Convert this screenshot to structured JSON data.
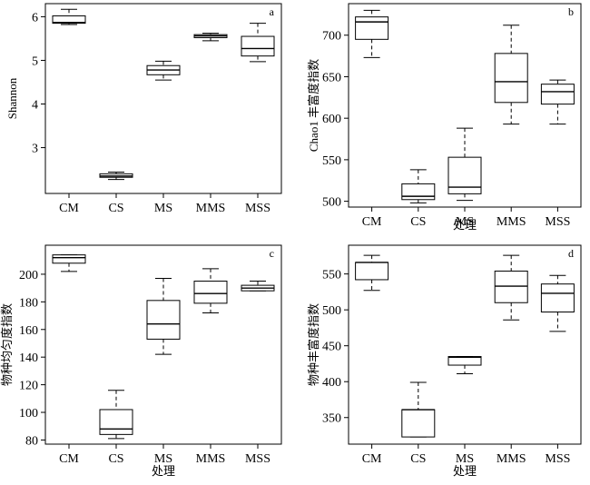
{
  "chart_data": [
    {
      "type": "box",
      "panel_label": "a",
      "xlabel": "",
      "ylabel": "Shannon",
      "categories": [
        "CM",
        "CS",
        "MS",
        "MMS",
        "MSS"
      ],
      "ylim": [
        1.95,
        6.3
      ],
      "yticks": [
        3,
        4,
        5,
        6
      ],
      "boxes": [
        {
          "min": 5.82,
          "q1": 5.85,
          "median": 5.87,
          "q3": 6.02,
          "max": 6.17
        },
        {
          "min": 2.27,
          "q1": 2.32,
          "median": 2.35,
          "q3": 2.4,
          "max": 2.44
        },
        {
          "min": 4.55,
          "q1": 4.67,
          "median": 4.78,
          "q3": 4.88,
          "max": 4.98
        },
        {
          "min": 5.45,
          "q1": 5.52,
          "median": 5.56,
          "q3": 5.59,
          "max": 5.62
        },
        {
          "min": 4.97,
          "q1": 5.1,
          "median": 5.27,
          "q3": 5.55,
          "max": 5.85
        }
      ]
    },
    {
      "type": "box",
      "panel_label": "b",
      "xlabel": "处理",
      "ylabel": "Chao1 丰富度指数",
      "categories": [
        "CM",
        "CS",
        "MS",
        "MMS",
        "MSS"
      ],
      "ylim": [
        493,
        738
      ],
      "yticks": [
        500,
        550,
        600,
        650,
        700
      ],
      "boxes": [
        {
          "min": 673,
          "q1": 695,
          "median": 716,
          "q3": 722,
          "max": 730
        },
        {
          "min": 498,
          "q1": 502,
          "median": 506,
          "q3": 521,
          "max": 538
        },
        {
          "min": 501,
          "q1": 509,
          "median": 517,
          "q3": 553,
          "max": 588
        },
        {
          "min": 593,
          "q1": 619,
          "median": 644,
          "q3": 678,
          "max": 712
        },
        {
          "min": 593,
          "q1": 617,
          "median": 632,
          "q3": 641,
          "max": 646
        }
      ]
    },
    {
      "type": "box",
      "panel_label": "c",
      "xlabel": "处理",
      "ylabel": "物种均匀度指数",
      "categories": [
        "CM",
        "CS",
        "MS",
        "MMS",
        "MSS"
      ],
      "ylim": [
        77,
        221
      ],
      "yticks": [
        80,
        100,
        120,
        140,
        160,
        180,
        200
      ],
      "boxes": [
        {
          "min": 202,
          "q1": 208,
          "median": 212,
          "q3": 214,
          "max": 214
        },
        {
          "min": 81,
          "q1": 84,
          "median": 88,
          "q3": 102,
          "max": 116
        },
        {
          "min": 142,
          "q1": 153,
          "median": 164,
          "q3": 181,
          "max": 197
        },
        {
          "min": 172,
          "q1": 179,
          "median": 186,
          "q3": 195,
          "max": 204
        },
        {
          "min": 188,
          "q1": 188,
          "median": 190,
          "q3": 192,
          "max": 195
        }
      ]
    },
    {
      "type": "box",
      "panel_label": "d",
      "xlabel": "处理",
      "ylabel": "物种丰富度指数",
      "categories": [
        "CM",
        "CS",
        "MS",
        "MMS",
        "MSS"
      ],
      "ylim": [
        313,
        590
      ],
      "yticks": [
        350,
        400,
        450,
        500,
        550
      ],
      "boxes": [
        {
          "min": 527,
          "q1": 542,
          "median": 566,
          "q3": 566,
          "max": 576
        },
        {
          "min": 323,
          "q1": 323,
          "median": 361,
          "q3": 361,
          "max": 399
        },
        {
          "min": 411,
          "q1": 423,
          "median": 434,
          "q3": 435,
          "max": 435
        },
        {
          "min": 486,
          "q1": 510,
          "median": 533,
          "q3": 554,
          "max": 576
        },
        {
          "min": 470,
          "q1": 497,
          "median": 523,
          "q3": 536,
          "max": 548
        }
      ]
    }
  ]
}
